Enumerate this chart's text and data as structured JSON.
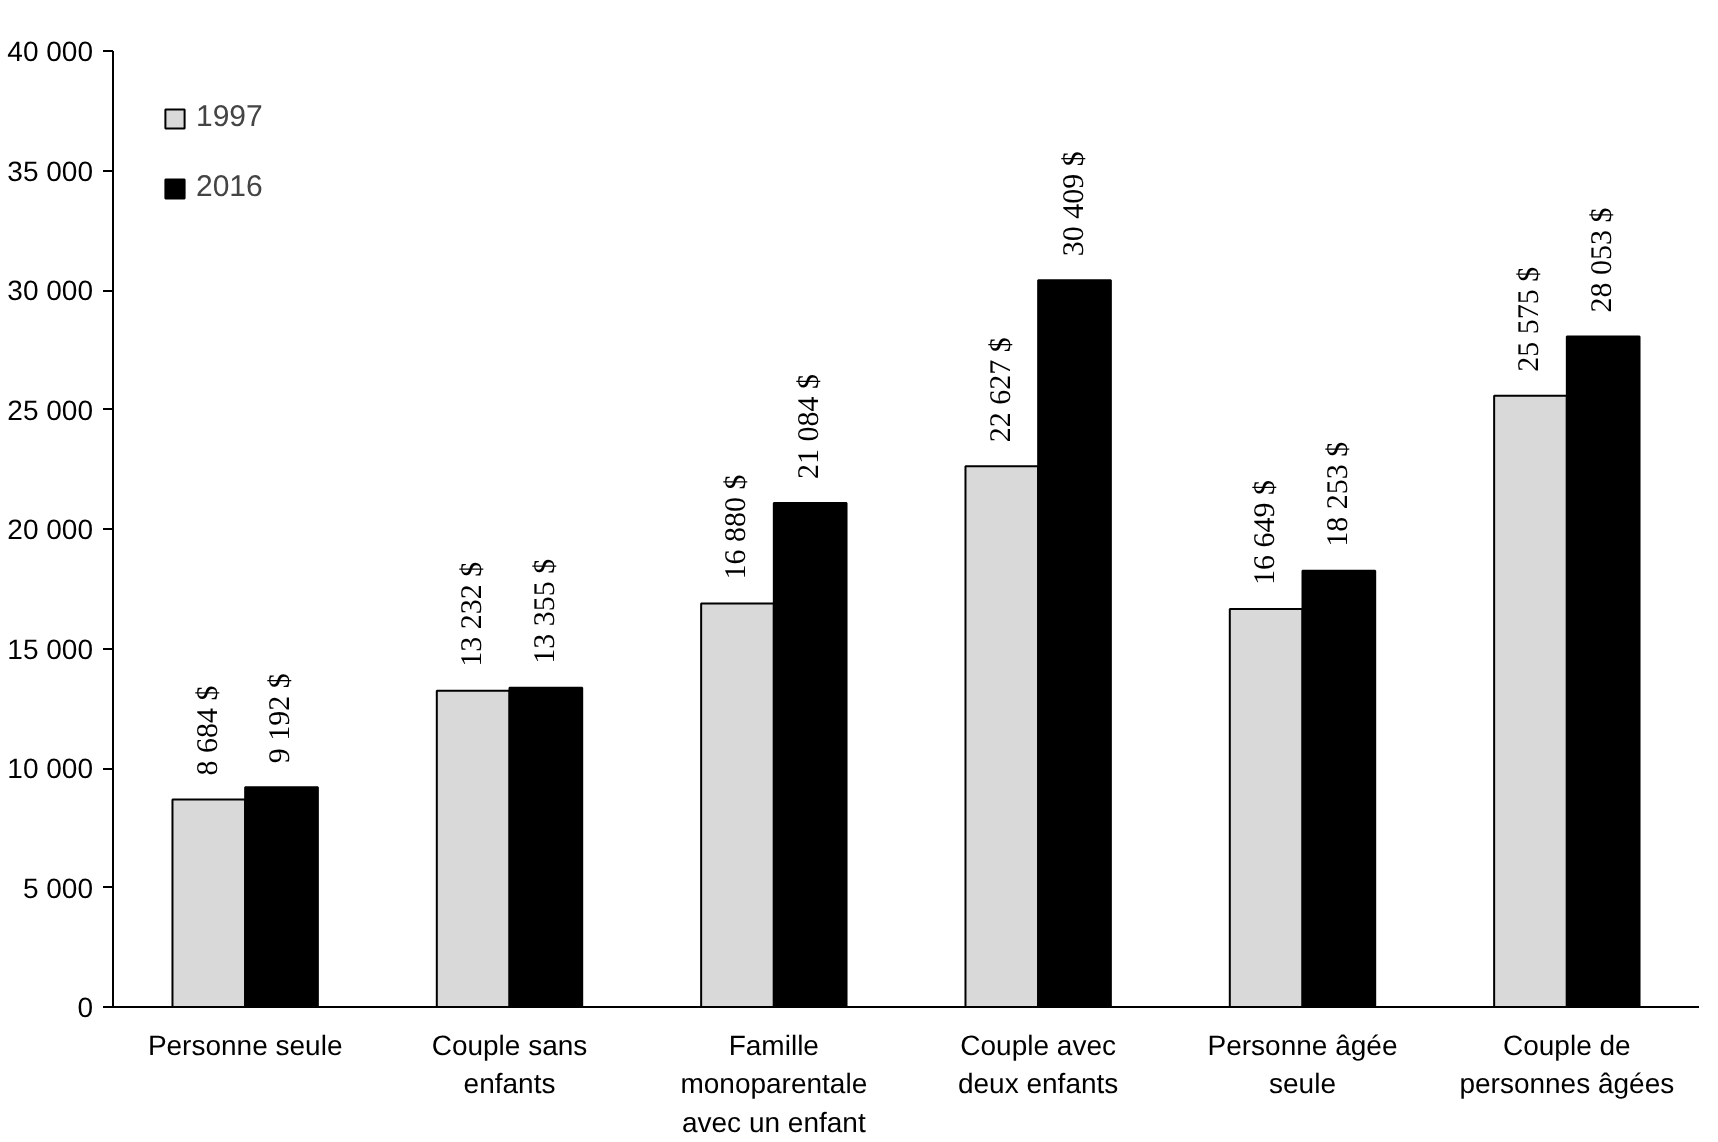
{
  "chart_data": {
    "type": "bar",
    "categories": [
      "Personne seule",
      "Couple sans\nenfants",
      "Famille\nmonoparentale\navec un enfant",
      "Couple avec\ndeux enfants",
      "Personne âgée\nseule",
      "Couple de\npersonnes âgées"
    ],
    "series": [
      {
        "name": "1997",
        "color": "#d9d9d9",
        "values": [
          8684,
          13232,
          16880,
          22627,
          16649,
          25575
        ],
        "value_labels": [
          "8 684 $",
          "13 232 $",
          "16 880 $",
          "22 627 $",
          "16 649 $",
          "25 575 $"
        ]
      },
      {
        "name": "2016",
        "color": "#000000",
        "values": [
          9192,
          13355,
          21084,
          30409,
          18253,
          28053
        ],
        "value_labels": [
          "9 192 $",
          "13 355 $",
          "21 084 $",
          "30 409 $",
          "18 253 $",
          "28 053 $"
        ]
      }
    ],
    "ylim": [
      0,
      40000
    ],
    "yticks": [
      {
        "value": 0,
        "label": "0"
      },
      {
        "value": 5000,
        "label": "5 000"
      },
      {
        "value": 10000,
        "label": "10 000"
      },
      {
        "value": 15000,
        "label": "15 000"
      },
      {
        "value": 20000,
        "label": "20 000"
      },
      {
        "value": 25000,
        "label": "25 000"
      },
      {
        "value": 30000,
        "label": "30 000"
      },
      {
        "value": 35000,
        "label": "35 000"
      },
      {
        "value": 40000,
        "label": "40 000"
      }
    ],
    "grid": false,
    "legend": "top left"
  }
}
